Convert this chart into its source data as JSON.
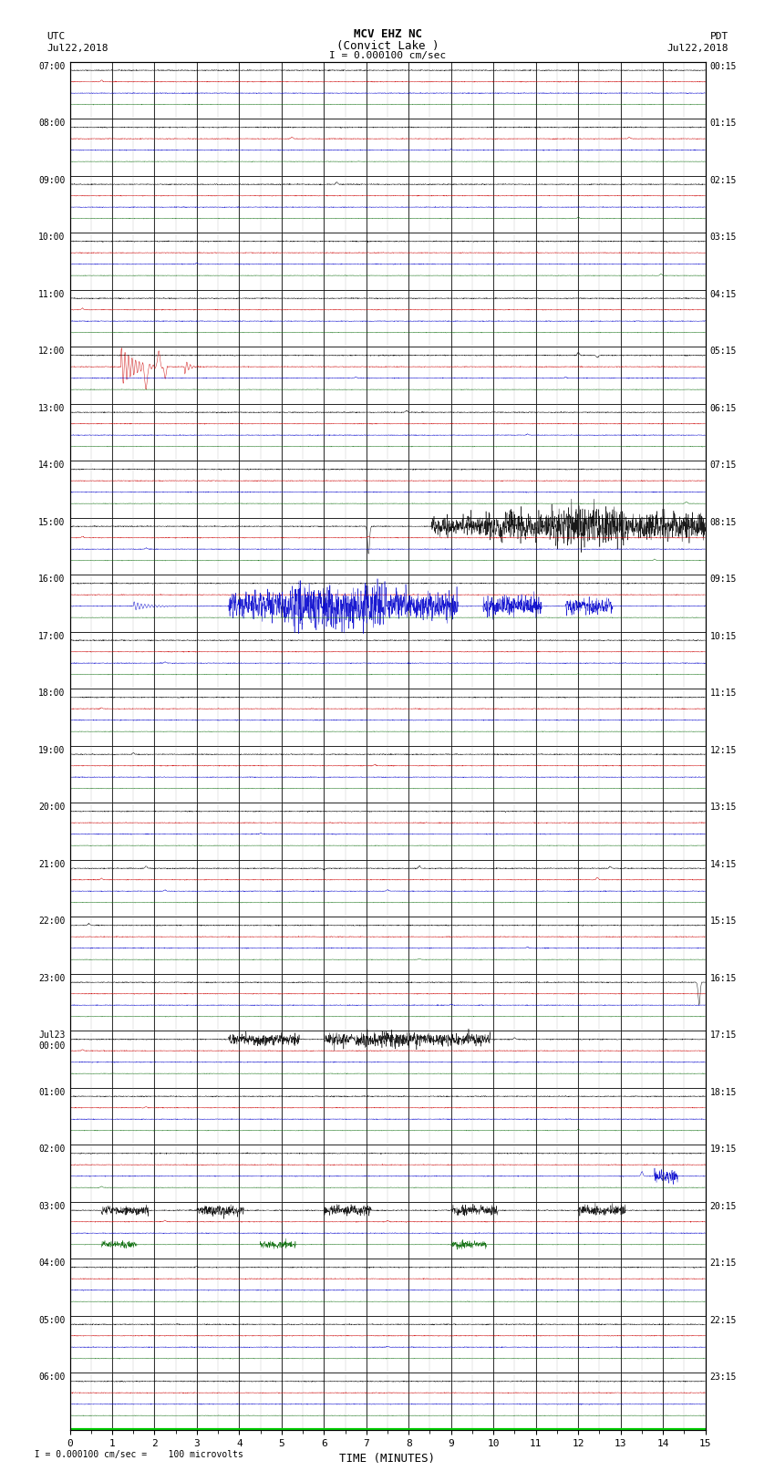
{
  "title_line1": "MCV EHZ NC",
  "title_line2": "(Convict Lake )",
  "title_line3": "I = 0.000100 cm/sec",
  "left_header_line1": "UTC",
  "left_header_line2": "Jul22,2018",
  "right_header_line1": "PDT",
  "right_header_line2": "Jul22,2018",
  "footer_text": "  I = 0.000100 cm/sec =    100 microvolts",
  "xlabel": "TIME (MINUTES)",
  "utc_labels": [
    "07:00",
    "08:00",
    "09:00",
    "10:00",
    "11:00",
    "12:00",
    "13:00",
    "14:00",
    "15:00",
    "16:00",
    "17:00",
    "18:00",
    "19:00",
    "20:00",
    "21:00",
    "22:00",
    "23:00",
    "Jul23\n00:00",
    "01:00",
    "02:00",
    "03:00",
    "04:00",
    "05:00",
    "06:00"
  ],
  "pdt_labels": [
    "00:15",
    "01:15",
    "02:15",
    "03:15",
    "04:15",
    "05:15",
    "06:15",
    "07:15",
    "08:15",
    "09:15",
    "10:15",
    "11:15",
    "12:15",
    "13:15",
    "14:15",
    "15:15",
    "16:15",
    "17:15",
    "18:15",
    "19:15",
    "20:15",
    "21:15",
    "22:15",
    "23:15"
  ],
  "n_rows": 24,
  "x_min": 0,
  "x_max": 15,
  "x_ticks": [
    0,
    1,
    2,
    3,
    4,
    5,
    6,
    7,
    8,
    9,
    10,
    11,
    12,
    13,
    14,
    15
  ],
  "background_color": "#ffffff",
  "grid_color": "#aaaaaa",
  "seed": 42,
  "sub_colors": [
    "#000000",
    "#cc0000",
    "#0000cc",
    "#006600"
  ],
  "n_sub": 4
}
